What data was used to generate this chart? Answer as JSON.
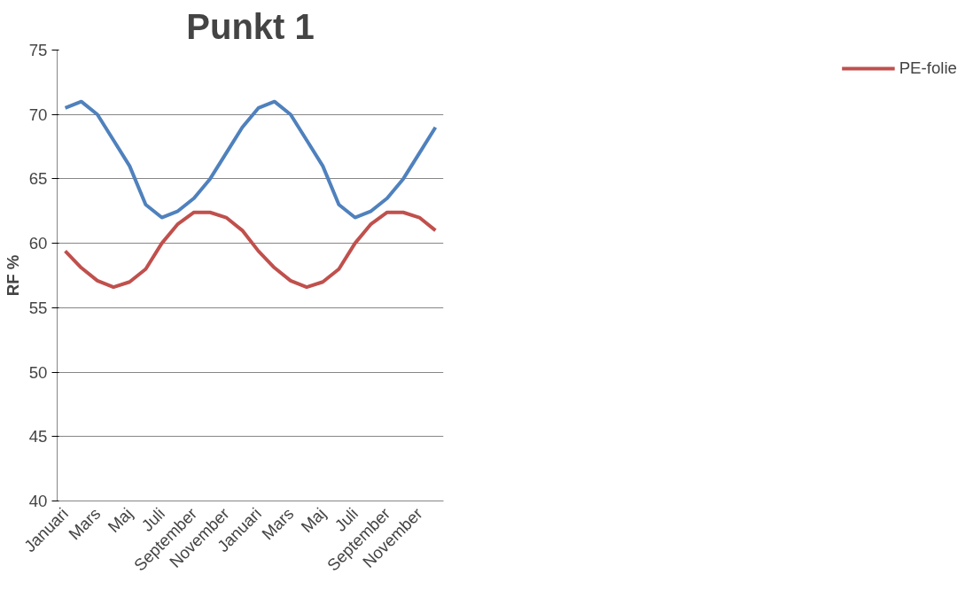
{
  "chart_data": {
    "type": "line",
    "title": "Punkt 1",
    "ylabel": "RF %",
    "categories": [
      "Januari",
      null,
      "Mars",
      null,
      "Maj",
      null,
      "Juli",
      null,
      "September",
      null,
      "November",
      null,
      "Januari",
      null,
      "Mars",
      null,
      "Maj",
      null,
      "Juli",
      null,
      "September",
      null,
      "November",
      null
    ],
    "series": [
      {
        "color": "#4f81bd",
        "values": [
          70.5,
          71,
          70,
          68,
          66,
          63,
          62,
          62.5,
          63.5,
          65,
          67,
          69,
          70.5,
          71,
          70,
          68,
          66,
          63,
          62,
          62.5,
          63.5,
          65,
          67,
          69
        ]
      },
      {
        "name": "PE-folie",
        "color": "#c0504d",
        "values": [
          59.4,
          58.1,
          57.1,
          56.6,
          57,
          58,
          60,
          61.5,
          62.4,
          62.4,
          62,
          61,
          59.4,
          58.1,
          57.1,
          56.6,
          57,
          58,
          60,
          61.5,
          62.4,
          62.4,
          62,
          61
        ]
      }
    ],
    "ylim": [
      40,
      75
    ],
    "yticks": [
      40,
      45,
      50,
      55,
      60,
      65,
      70,
      75
    ],
    "grid": "y",
    "legend": "right",
    "marker": "none",
    "line_style": "solid"
  }
}
